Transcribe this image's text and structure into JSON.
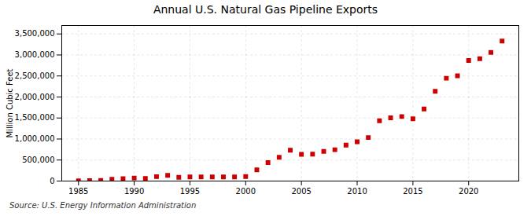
{
  "chart_data": {
    "type": "scatter",
    "title": "Annual U.S. Natural Gas Pipeline Exports",
    "ylabel": "Million Cubic Feet",
    "annotation": "Source: U.S. Energy Information Administration",
    "x": [
      1985,
      1986,
      1987,
      1988,
      1989,
      1990,
      1991,
      1992,
      1993,
      1994,
      1995,
      1996,
      1997,
      1998,
      1999,
      2000,
      2001,
      2002,
      2003,
      2004,
      2005,
      2006,
      2007,
      2008,
      2009,
      2010,
      2011,
      2012,
      2013,
      2014,
      2015,
      2016,
      2017,
      2018,
      2019,
      2020,
      2021,
      2022,
      2023
    ],
    "values": [
      4000,
      8000,
      14000,
      42000,
      55000,
      72000,
      62000,
      105000,
      135000,
      88000,
      98000,
      98000,
      98000,
      98000,
      98000,
      108000,
      265000,
      440000,
      565000,
      735000,
      635000,
      640000,
      705000,
      745000,
      855000,
      935000,
      1035000,
      1435000,
      1505000,
      1535000,
      1480000,
      1715000,
      2135000,
      2445000,
      2505000,
      2870000,
      2910000,
      3060000,
      3330000
    ],
    "color": "#cc0000",
    "marker": "square",
    "xlim": [
      1983.5,
      2024.5
    ],
    "ylim": [
      0,
      3700000
    ],
    "xticks": [
      1985,
      1990,
      1995,
      2000,
      2005,
      2010,
      2015,
      2020
    ],
    "yticks": [
      0,
      {
        "value": 500000,
        "label": "500,000"
      },
      {
        "value": 1000000,
        "label": "1,000,000"
      },
      {
        "value": 1500000,
        "label": "1,500,000"
      },
      {
        "value": 2000000,
        "label": "2,000,000"
      },
      {
        "value": 2500000,
        "label": "2,500,000"
      },
      {
        "value": 3000000,
        "label": "3,000,000"
      },
      {
        "value": 3500000,
        "label": "3,500,000"
      }
    ],
    "grid": true
  }
}
